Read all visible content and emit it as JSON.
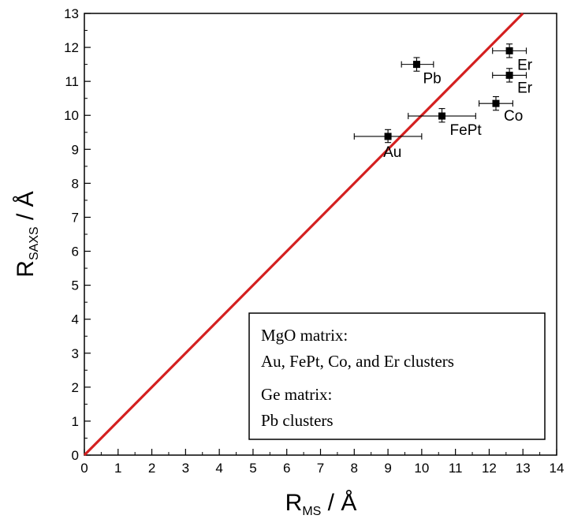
{
  "chart_data": {
    "type": "scatter",
    "xlabel": {
      "main": "R",
      "sub": "MS",
      "unit": " / Å"
    },
    "ylabel": {
      "main": "R",
      "sub": "SAXS",
      "unit": " / Å"
    },
    "xlim": [
      0,
      14
    ],
    "ylim": [
      0,
      13
    ],
    "xticks": [
      0,
      1,
      2,
      3,
      4,
      5,
      6,
      7,
      8,
      9,
      10,
      11,
      12,
      13,
      14
    ],
    "yticks": [
      0,
      1,
      2,
      3,
      4,
      5,
      6,
      7,
      8,
      9,
      10,
      11,
      12,
      13
    ],
    "grid": false,
    "points": [
      {
        "label": "Au",
        "x": 9.0,
        "y": 9.38,
        "xerr": [
          8.0,
          10.0
        ],
        "yerr": [
          9.2,
          9.58
        ]
      },
      {
        "label": "FePt",
        "x": 10.6,
        "y": 9.98,
        "xerr": [
          9.6,
          11.6
        ],
        "yerr": [
          9.8,
          10.2
        ]
      },
      {
        "label": "Pb",
        "x": 9.85,
        "y": 11.5,
        "xerr": [
          9.4,
          10.35
        ],
        "yerr": [
          11.3,
          11.7
        ]
      },
      {
        "label": "Co",
        "x": 12.2,
        "y": 10.35,
        "xerr": [
          11.7,
          12.7
        ],
        "yerr": [
          10.15,
          10.55
        ]
      },
      {
        "label": "Er",
        "x": 12.6,
        "y": 11.9,
        "xerr": [
          12.1,
          13.1
        ],
        "yerr": [
          11.7,
          12.1
        ]
      },
      {
        "label": "Er",
        "x": 12.6,
        "y": 11.18,
        "xerr": [
          12.1,
          13.1
        ],
        "yerr": [
          10.98,
          11.38
        ]
      }
    ],
    "reference_line": {
      "from": [
        0,
        0
      ],
      "to": [
        14,
        14
      ],
      "color": "#d42020"
    },
    "marker_color": "#000000",
    "legend": {
      "placement": "bottom-right",
      "lines": [
        "MgO matrix:",
        "Au, FePt, Co, and Er clusters",
        "Ge matrix:",
        "Pb clusters"
      ]
    }
  }
}
